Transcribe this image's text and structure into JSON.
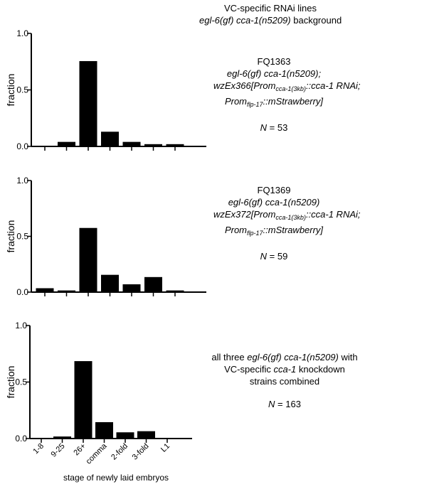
{
  "header": {
    "line1": "VC-specific RNAi lines",
    "line2_italic": "egl-6(gf) cca-1(n5209)",
    "line2_rest": " background"
  },
  "x_axis_title": "stage of newly laid embryos",
  "panels": [
    {
      "ylabel": "fraction",
      "yticks": [
        "1.0",
        "0.5",
        "0.0"
      ],
      "strain": "FQ1363",
      "genotype": "egl-6(gf) cca-1(n5209);",
      "ex_line": {
        "a": "wzEx366[Prom",
        "a_sub": "cca-1(3kb)",
        "b": "::cca-1 RNAi;"
      },
      "prom_line": {
        "a": "Prom",
        "a_sub": "flp-17",
        "b": "::mStrawberry]"
      },
      "n_label": "N",
      "n_value": " = 53"
    },
    {
      "ylabel": "fraction",
      "yticks": [
        "1.0",
        "0.5",
        "0.0"
      ],
      "strain": "FQ1369",
      "genotype": "egl-6(gf) cca-1(n5209)",
      "ex_line": {
        "a": "wzEx372[Prom",
        "a_sub": "cca-1(3kb)",
        "b": "::cca-1 RNAi;"
      },
      "prom_line": {
        "a": "Prom",
        "a_sub": "flp-17",
        "b": "::mStrawberry]"
      },
      "n_label": "N",
      "n_value": " = 59"
    },
    {
      "ylabel": "fraction",
      "yticks": [
        "1.0",
        "0.5",
        "0.0"
      ],
      "line1_a": "all three ",
      "line1_it": "egl-6(gf) cca-1(n5209)",
      "line1_b": " with",
      "line2_a": "VC-specific ",
      "line2_it": "cca-1",
      "line2_b": " knockdown",
      "line3": "strains combined",
      "n_label": "N",
      "n_value": " = 163"
    }
  ],
  "chart_data": [
    {
      "type": "bar",
      "categories": [
        "1-8",
        "9-25",
        "26+",
        "comma",
        "2-fold",
        "3-fold",
        "L1"
      ],
      "values": [
        0.0,
        0.04,
        0.755,
        0.13,
        0.04,
        0.02,
        0.02
      ],
      "ylabel": "fraction",
      "ylim": [
        0,
        1.0
      ],
      "grid": false
    },
    {
      "type": "bar",
      "categories": [
        "1-8",
        "9-25",
        "26+",
        "comma",
        "2-fold",
        "3-fold",
        "L1"
      ],
      "values": [
        0.035,
        0.015,
        0.575,
        0.155,
        0.07,
        0.135,
        0.015
      ],
      "ylabel": "fraction",
      "ylim": [
        0,
        1.0
      ],
      "grid": false
    },
    {
      "type": "bar",
      "categories": [
        "1-8",
        "9-25",
        "26+",
        "comma",
        "2-fold",
        "3-fold",
        "L1"
      ],
      "values": [
        0.006,
        0.018,
        0.685,
        0.145,
        0.055,
        0.065,
        0.006
      ],
      "xlabel": "stage of newly laid embryos",
      "ylabel": "fraction",
      "ylim": [
        0,
        1.0
      ],
      "grid": false
    }
  ]
}
